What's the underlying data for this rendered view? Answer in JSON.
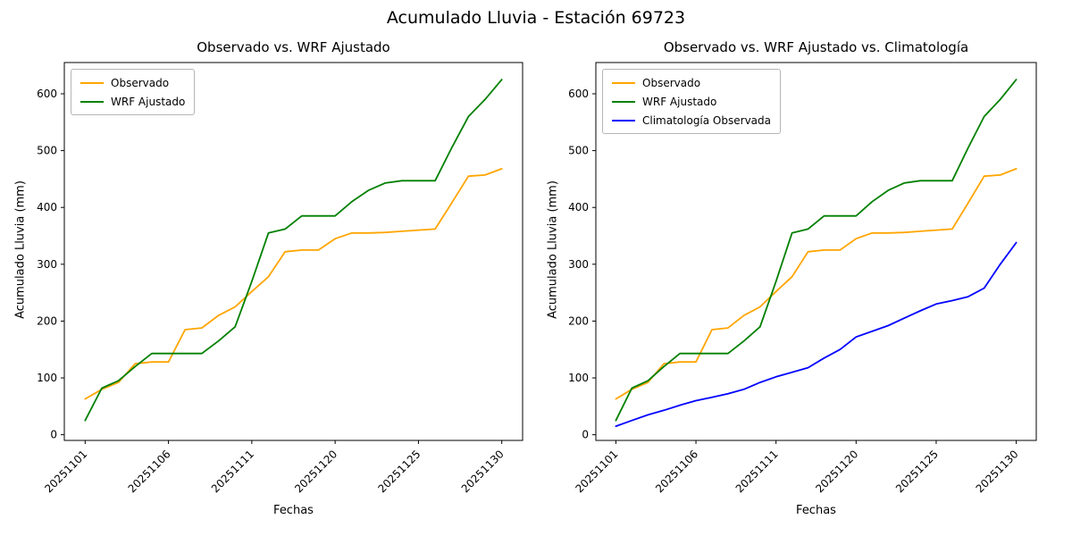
{
  "figure": {
    "title": "Acumulado Lluvia - Estación 69723",
    "background": "#ffffff"
  },
  "chart_data": [
    {
      "type": "line",
      "title": "Observado vs. WRF Ajustado",
      "xlabel": "Fechas",
      "ylabel": "Acumulado Lluvia (mm)",
      "ylim": [
        -10,
        655
      ],
      "yticks": [
        0,
        100,
        200,
        300,
        400,
        500,
        600
      ],
      "grid": false,
      "legend_position": "upper-left",
      "x": [
        "20251101",
        "20251102",
        "20251103",
        "20251104",
        "20251105",
        "20251106",
        "20251107",
        "20251108",
        "20251109",
        "20251110",
        "20251111",
        "20251113",
        "20251115",
        "20251117",
        "20251119",
        "20251120",
        "20251121",
        "20251122",
        "20251123",
        "20251124",
        "20251125",
        "20251126",
        "20251127",
        "20251128",
        "20251129",
        "20251130"
      ],
      "xtick_indices": [
        0,
        5,
        10,
        15,
        20,
        25
      ],
      "xtick_labels": [
        "20251101",
        "20251106",
        "20251111",
        "20251120",
        "20251125",
        "20251130"
      ],
      "series": [
        {
          "name": "Observado",
          "color": "#ffa500",
          "values": [
            63,
            80,
            92,
            125,
            128,
            128,
            185,
            188,
            210,
            225,
            252,
            278,
            322,
            325,
            325,
            345,
            355,
            355,
            356,
            358,
            360,
            362,
            408,
            455,
            457,
            468
          ]
        },
        {
          "name": "WRF Ajustado",
          "color": "#008000",
          "values": [
            25,
            82,
            95,
            120,
            143,
            143,
            143,
            143,
            165,
            190,
            270,
            355,
            362,
            385,
            385,
            385,
            410,
            430,
            443,
            447,
            447,
            447,
            505,
            560,
            590,
            625
          ]
        }
      ]
    },
    {
      "type": "line",
      "title": "Observado vs. WRF Ajustado vs. Climatología",
      "xlabel": "Fechas",
      "ylabel": "Acumulado Lluvia (mm)",
      "ylim": [
        -10,
        655
      ],
      "yticks": [
        0,
        100,
        200,
        300,
        400,
        500,
        600
      ],
      "grid": false,
      "legend_position": "upper-left",
      "x": [
        "20251101",
        "20251102",
        "20251103",
        "20251104",
        "20251105",
        "20251106",
        "20251107",
        "20251108",
        "20251109",
        "20251110",
        "20251111",
        "20251113",
        "20251115",
        "20251117",
        "20251119",
        "20251120",
        "20251121",
        "20251122",
        "20251123",
        "20251124",
        "20251125",
        "20251126",
        "20251127",
        "20251128",
        "20251129",
        "20251130"
      ],
      "xtick_indices": [
        0,
        5,
        10,
        15,
        20,
        25
      ],
      "xtick_labels": [
        "20251101",
        "20251106",
        "20251111",
        "20251120",
        "20251125",
        "20251130"
      ],
      "series": [
        {
          "name": "Observado",
          "color": "#ffa500",
          "values": [
            63,
            80,
            92,
            125,
            128,
            128,
            185,
            188,
            210,
            225,
            252,
            278,
            322,
            325,
            325,
            345,
            355,
            355,
            356,
            358,
            360,
            362,
            408,
            455,
            457,
            468
          ]
        },
        {
          "name": "WRF Ajustado",
          "color": "#008000",
          "values": [
            25,
            82,
            95,
            120,
            143,
            143,
            143,
            143,
            165,
            190,
            270,
            355,
            362,
            385,
            385,
            385,
            410,
            430,
            443,
            447,
            447,
            447,
            505,
            560,
            590,
            625
          ]
        },
        {
          "name": "Climatología Observada",
          "color": "#0000ff",
          "values": [
            15,
            25,
            35,
            43,
            52,
            60,
            66,
            72,
            80,
            92,
            102,
            110,
            118,
            135,
            150,
            172,
            182,
            192,
            205,
            218,
            230,
            236,
            243,
            258,
            300,
            338
          ]
        }
      ]
    }
  ]
}
